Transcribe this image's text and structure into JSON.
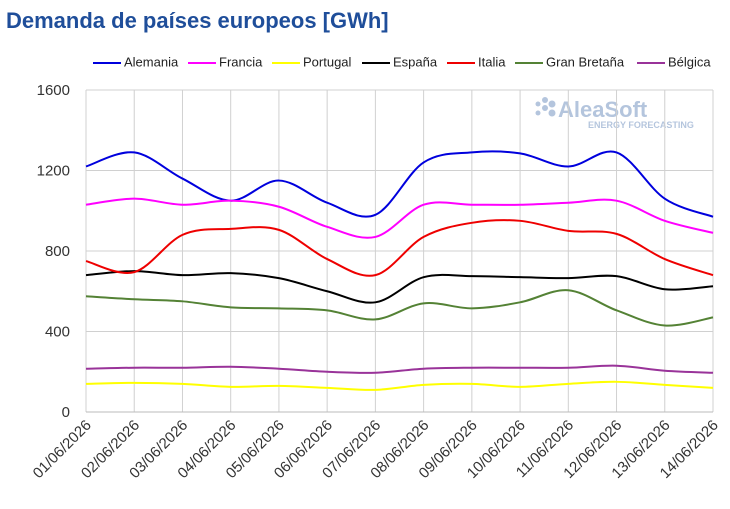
{
  "chart_data": {
    "type": "line",
    "title": "Demanda de países europeos [GWh]",
    "watermark": {
      "brand": "AleaSoft",
      "tagline": "ENERGY FORECASTING"
    },
    "x": [
      "01/06/2026",
      "02/06/2026",
      "03/06/2026",
      "04/06/2026",
      "05/06/2026",
      "06/06/2026",
      "07/06/2026",
      "08/06/2026",
      "09/06/2026",
      "10/06/2026",
      "11/06/2026",
      "12/06/2026",
      "13/06/2026",
      "14/06/2026"
    ],
    "ylim": [
      0,
      1600
    ],
    "yticks": [
      0,
      400,
      800,
      1200,
      1600
    ],
    "grid": true,
    "legend": "top",
    "series": [
      {
        "name": "Alemania",
        "color": "#0000dd",
        "values": [
          1220,
          1290,
          1160,
          1050,
          1150,
          1040,
          980,
          1240,
          1290,
          1285,
          1220,
          1290,
          1060,
          970
        ]
      },
      {
        "name": "Francia",
        "color": "#ff00ff",
        "values": [
          1030,
          1060,
          1030,
          1050,
          1020,
          920,
          870,
          1030,
          1030,
          1030,
          1040,
          1050,
          950,
          890
        ]
      },
      {
        "name": "Portugal",
        "color": "#ffff00",
        "values": [
          140,
          145,
          140,
          125,
          130,
          120,
          110,
          135,
          140,
          125,
          140,
          150,
          135,
          120
        ]
      },
      {
        "name": "España",
        "color": "#000000",
        "values": [
          680,
          700,
          680,
          690,
          665,
          600,
          545,
          670,
          675,
          670,
          665,
          675,
          610,
          625
        ]
      },
      {
        "name": "Italia",
        "color": "#ee0000",
        "values": [
          750,
          695,
          880,
          910,
          905,
          760,
          680,
          870,
          940,
          950,
          900,
          885,
          760,
          680
        ]
      },
      {
        "name": "Gran Bretaña",
        "color": "#548235",
        "values": [
          575,
          560,
          550,
          520,
          515,
          505,
          460,
          540,
          515,
          545,
          605,
          505,
          430,
          470
        ]
      },
      {
        "name": "Bélgica",
        "color": "#993399",
        "values": [
          215,
          220,
          220,
          225,
          215,
          200,
          195,
          215,
          220,
          220,
          220,
          230,
          205,
          195
        ]
      }
    ]
  }
}
